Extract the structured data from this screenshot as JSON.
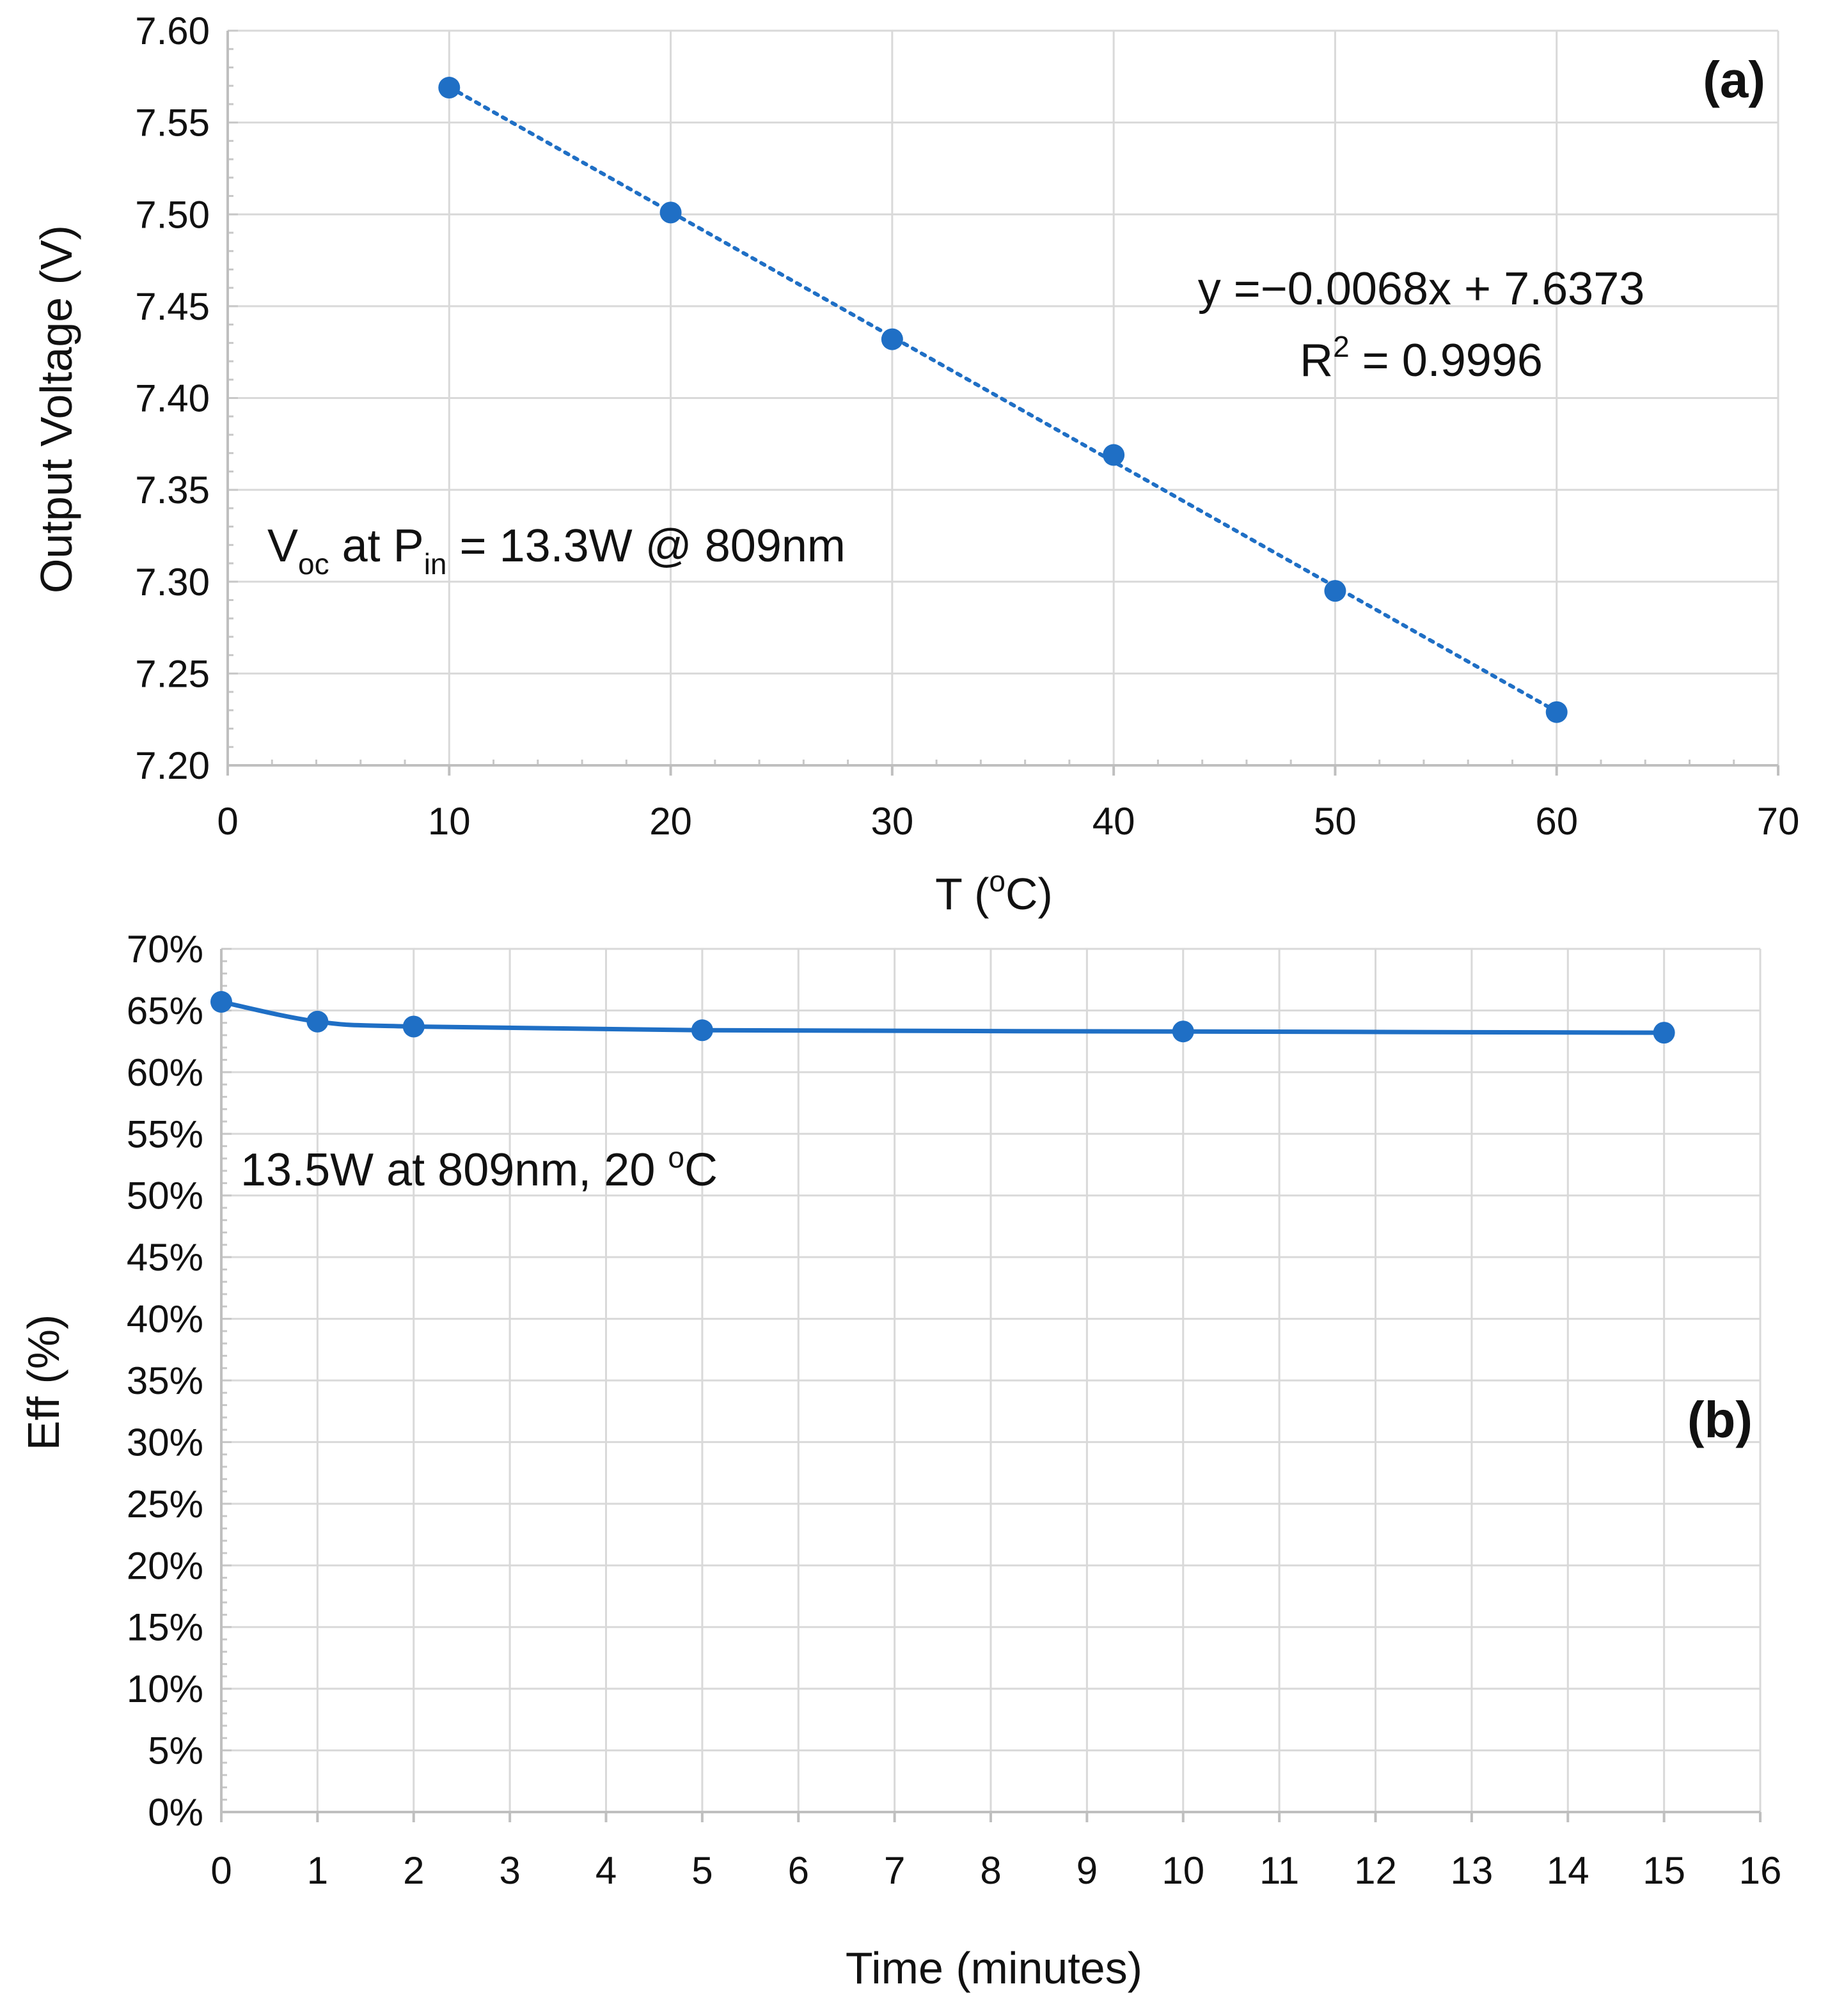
{
  "chart_data": [
    {
      "type": "scatter",
      "panel_label": "(a)",
      "title": "",
      "xlabel": "T (oC)",
      "xlabel_main": "T (",
      "xlabel_sup": "o",
      "xlabel_tail": "C)",
      "ylabel": "Output Voltage (V)",
      "xlim": [
        0,
        70
      ],
      "ylim": [
        7.2,
        7.6
      ],
      "xticks": [
        "0",
        "10",
        "20",
        "30",
        "40",
        "50",
        "60",
        "70"
      ],
      "yticks": [
        "7.20",
        "7.25",
        "7.30",
        "7.35",
        "7.40",
        "7.45",
        "7.50",
        "7.55",
        "7.60"
      ],
      "grid": true,
      "series": [
        {
          "name": "Voc",
          "color": "#1f6fc5",
          "x": [
            10,
            20,
            30,
            40,
            50,
            60
          ],
          "values": [
            7.569,
            7.501,
            7.432,
            7.369,
            7.295,
            7.229
          ]
        }
      ],
      "trendline": {
        "style": "dotted",
        "slope": -0.0068,
        "intercept": 7.6373,
        "x_range": [
          10,
          60
        ],
        "equation": "y =−0.0068x + 7.6373",
        "r2_prefix": "R",
        "r2_sup": "2",
        "r2_value": " = 0.9996"
      },
      "annotation": {
        "v": "V",
        "v_sub": "oc",
        "mid": " at P",
        "p_sub": "in",
        "tail": " = 13.3W @ 809nm"
      }
    },
    {
      "type": "line",
      "panel_label": "(b)",
      "title": "",
      "xlabel": "Time (minutes)",
      "ylabel": "Eff (%)",
      "xlim": [
        0,
        16
      ],
      "ylim": [
        0,
        70
      ],
      "xticks": [
        "0",
        "1",
        "2",
        "3",
        "4",
        "5",
        "6",
        "7",
        "8",
        "9",
        "10",
        "11",
        "12",
        "13",
        "14",
        "15",
        "16"
      ],
      "yticks": [
        "0%",
        "5%",
        "10%",
        "15%",
        "20%",
        "25%",
        "30%",
        "35%",
        "40%",
        "45%",
        "50%",
        "55%",
        "60%",
        "65%",
        "70%"
      ],
      "grid": true,
      "series": [
        {
          "name": "Eff",
          "color": "#1f6fc5",
          "x": [
            0,
            1,
            2,
            5,
            10,
            15
          ],
          "values": [
            65.7,
            64.1,
            63.7,
            63.4,
            63.3,
            63.2
          ]
        }
      ],
      "annotation": {
        "main": "13.5W at 809nm, 20 ",
        "sup": "o",
        "tail": "C"
      }
    }
  ]
}
